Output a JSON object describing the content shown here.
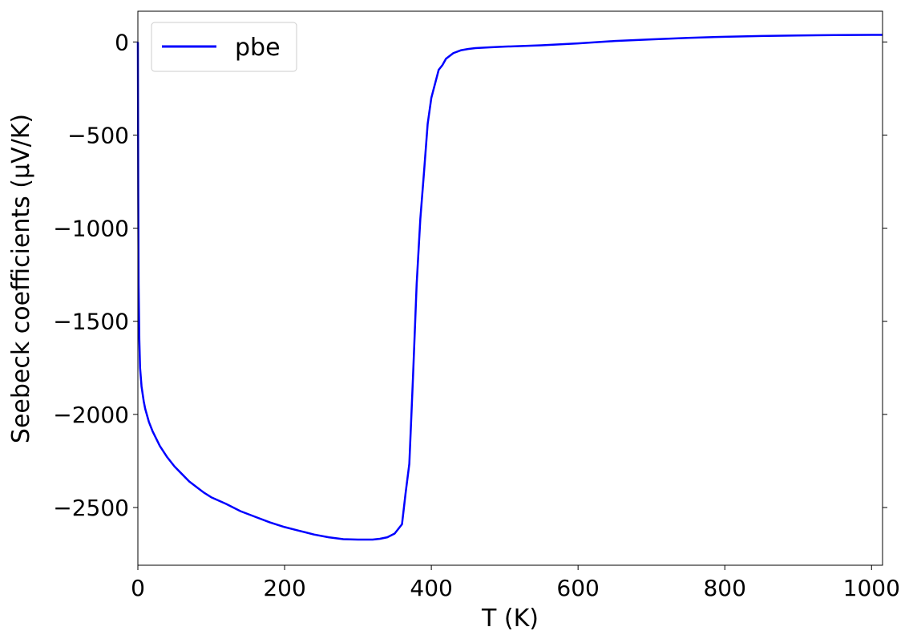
{
  "chart_data": {
    "type": "line",
    "xlabel": "T (K)",
    "ylabel": "Seebeck coefficients (µV/K)",
    "xlim": [
      0,
      1015
    ],
    "ylim": [
      -2810,
      165
    ],
    "xticks": [
      0,
      200,
      400,
      600,
      800,
      1000
    ],
    "xtick_labels": [
      "0",
      "200",
      "400",
      "600",
      "800",
      "1000"
    ],
    "yticks": [
      0,
      -500,
      -1000,
      -1500,
      -2000,
      -2500
    ],
    "ytick_labels": [
      "0",
      "−500",
      "−1000",
      "−1500",
      "−2000",
      "−2500"
    ],
    "grid": false,
    "legend_position": "top-left",
    "series": [
      {
        "name": "pbe",
        "color": "#0000ff",
        "x": [
          0,
          0.5,
          1,
          2,
          3,
          5,
          8,
          10,
          15,
          20,
          25,
          30,
          40,
          50,
          60,
          70,
          80,
          90,
          100,
          120,
          140,
          160,
          180,
          200,
          220,
          240,
          260,
          280,
          300,
          320,
          330,
          340,
          350,
          360,
          365,
          370,
          375,
          380,
          385,
          390,
          395,
          400,
          410,
          415,
          420,
          430,
          440,
          450,
          460,
          480,
          500,
          550,
          600,
          650,
          700,
          750,
          800,
          850,
          900,
          950,
          1000,
          1015
        ],
        "y": [
          0,
          -800,
          -1300,
          -1600,
          -1750,
          -1850,
          -1930,
          -1970,
          -2040,
          -2090,
          -2130,
          -2170,
          -2230,
          -2280,
          -2320,
          -2360,
          -2390,
          -2420,
          -2445,
          -2480,
          -2520,
          -2550,
          -2580,
          -2605,
          -2625,
          -2645,
          -2660,
          -2670,
          -2672,
          -2672,
          -2668,
          -2660,
          -2640,
          -2590,
          -2420,
          -2265,
          -1800,
          -1300,
          -950,
          -700,
          -440,
          -300,
          -150,
          -125,
          -90,
          -60,
          -45,
          -38,
          -33,
          -29,
          -25,
          -18,
          -8,
          5,
          14,
          22,
          28,
          32,
          35,
          37,
          38,
          38
        ]
      }
    ]
  }
}
